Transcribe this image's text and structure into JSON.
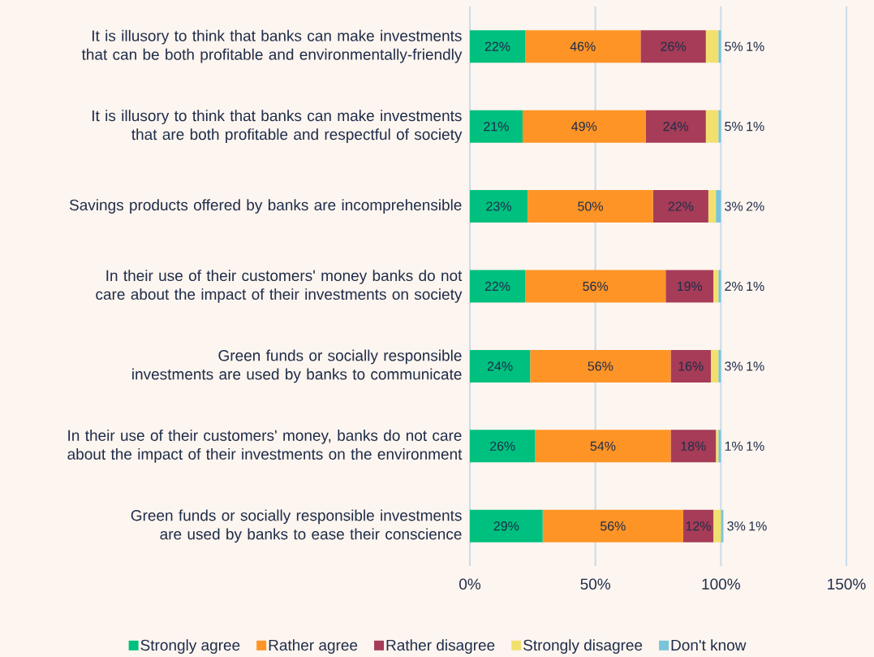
{
  "chart_data": {
    "type": "bar",
    "orientation": "horizontal",
    "stacked": true,
    "grid": "x",
    "legend": "bottom",
    "categories": [
      "It is illusory to think that banks can make investments that can be both profitable and environmentally-friendly",
      "It is illusory to think that banks can make investments that are both profitable and respectful of society",
      "Savings products offered by banks are incomprehensible",
      "In their use of their customers' money banks do not care about the impact of their investments on society",
      "Green funds or socially responsible investments are used by banks to communicate",
      "In their use of their customers' money, banks do not care about the impact of their investments on the environment",
      "Green funds or socially responsible investments are used by banks to ease their conscience"
    ],
    "xlim": [
      0,
      150
    ],
    "xticks": [
      {
        "value": 0,
        "label": "0%"
      },
      {
        "value": 50,
        "label": "50%"
      },
      {
        "value": 100,
        "label": "100%"
      },
      {
        "value": 150,
        "label": "150%"
      }
    ],
    "series": [
      {
        "name": "Strongly agree",
        "color": "#00c07f",
        "values": [
          22,
          21,
          23,
          22,
          24,
          26,
          29
        ],
        "value_labels": [
          "22%",
          "21%",
          "23%",
          "22%",
          "24%",
          "26%",
          "29%"
        ]
      },
      {
        "name": "Rather agree",
        "color": "#ff9426",
        "values": [
          46,
          49,
          50,
          56,
          56,
          54,
          56
        ],
        "value_labels": [
          "46%",
          "49%",
          "50%",
          "56%",
          "56%",
          "54%",
          "56%"
        ]
      },
      {
        "name": "Rather disagree",
        "color": "#a63c57",
        "values": [
          26,
          24,
          22,
          19,
          16,
          18,
          12
        ],
        "value_labels": [
          "26%",
          "24%",
          "22%",
          "19%",
          "16%",
          "18%",
          "12%"
        ]
      },
      {
        "name": "Strongly disagree",
        "color": "#f2e06e",
        "values": [
          5,
          5,
          3,
          2,
          3,
          1,
          3
        ],
        "value_labels": [
          "5%",
          "5%",
          "3%",
          "2%",
          "3%",
          "1%",
          "3%"
        ]
      },
      {
        "name": "Don't know",
        "color": "#79c4dc",
        "values": [
          1,
          1,
          2,
          1,
          1,
          1,
          1
        ],
        "value_labels": [
          "1%",
          "1%",
          "2%",
          "1%",
          "1%",
          "1%",
          "1%"
        ]
      }
    ]
  }
}
